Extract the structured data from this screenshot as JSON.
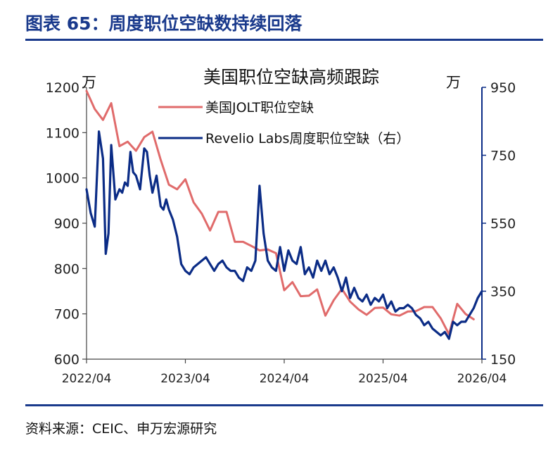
{
  "figure_title": "图表 65：周度职位空缺数持续回落",
  "source": "资料来源：CEIC、申万宏源研究",
  "chart_data": {
    "type": "line",
    "title": "美国职位空缺高频跟踪",
    "left_unit": "万",
    "right_unit": "万",
    "x_ticks": [
      "2022/04",
      "2023/04",
      "2024/04",
      "2025/04",
      "2026/04"
    ],
    "left_axis": {
      "ticks": [
        600,
        700,
        800,
        900,
        1000,
        1100,
        1200
      ],
      "ylim": [
        600,
        1200
      ]
    },
    "right_axis": {
      "ticks": [
        150,
        350,
        550,
        750,
        950
      ],
      "ylim": [
        150,
        950
      ]
    },
    "legend_position": "top-center",
    "series": [
      {
        "name": "美国JOLT职位空缺",
        "axis": "left",
        "color": "#e06b6b",
        "x": [
          "2022/04",
          "2022/05",
          "2022/06",
          "2022/07",
          "2022/08",
          "2022/09",
          "2022/10",
          "2022/11",
          "2022/12",
          "2023/01",
          "2023/02",
          "2023/03",
          "2023/04",
          "2023/05",
          "2023/06",
          "2023/07",
          "2023/08",
          "2023/09",
          "2023/10",
          "2023/11",
          "2023/12",
          "2024/01",
          "2024/02",
          "2024/03",
          "2024/04",
          "2024/05",
          "2024/06",
          "2024/07",
          "2024/08",
          "2024/09",
          "2024/10",
          "2024/11",
          "2024/12",
          "2025/01",
          "2025/02",
          "2025/03",
          "2025/04",
          "2025/05",
          "2025/06",
          "2025/07",
          "2025/08",
          "2025/09",
          "2025/10",
          "2025/11",
          "2025/12",
          "2026/01",
          "2026/02",
          "2026/03"
        ],
        "values": [
          1192,
          1152,
          1128,
          1165,
          1070,
          1080,
          1060,
          1090,
          1102,
          1040,
          985,
          975,
          997,
          946,
          921,
          884,
          925,
          925,
          859,
          859,
          850,
          840,
          842,
          834,
          752,
          770,
          739,
          740,
          754,
          696,
          730,
          755,
          727,
          710,
          698,
          713,
          714,
          699,
          696,
          705,
          706,
          715,
          715,
          690,
          655,
          722,
          700,
          688
        ]
      },
      {
        "name": "Revelio Labs周度职位空缺（右）",
        "axis": "right",
        "color": "#0b2c86",
        "x": [
          "2022/04",
          "2022/04",
          "2022/05",
          "2022/05",
          "2022/06",
          "2022/06",
          "2022/06",
          "2022/07",
          "2022/07",
          "2022/08",
          "2022/08",
          "2022/08",
          "2022/09",
          "2022/09",
          "2022/09",
          "2022/10",
          "2022/10",
          "2022/11",
          "2022/11",
          "2022/11",
          "2022/12",
          "2022/12",
          "2023/01",
          "2023/01",
          "2023/01",
          "2023/02",
          "2023/02",
          "2023/03",
          "2023/03",
          "2023/04",
          "2023/04",
          "2023/05",
          "2023/05",
          "2023/06",
          "2023/06",
          "2023/07",
          "2023/07",
          "2023/08",
          "2023/08",
          "2023/09",
          "2023/09",
          "2023/10",
          "2023/10",
          "2023/11",
          "2023/11",
          "2023/12",
          "2023/12",
          "2024/01",
          "2024/01",
          "2024/02",
          "2024/02",
          "2024/03",
          "2024/03",
          "2024/04",
          "2024/04",
          "2024/05",
          "2024/05",
          "2024/06",
          "2024/06",
          "2024/07",
          "2024/07",
          "2024/08",
          "2024/08",
          "2024/09",
          "2024/09",
          "2024/10",
          "2024/10",
          "2024/11",
          "2024/11",
          "2024/12",
          "2024/12",
          "2025/01",
          "2025/01",
          "2025/02",
          "2025/02",
          "2025/03",
          "2025/03",
          "2025/04",
          "2025/04",
          "2025/05",
          "2025/05",
          "2025/06",
          "2025/06",
          "2025/07",
          "2025/07",
          "2025/08",
          "2025/08",
          "2025/09",
          "2025/09",
          "2025/10",
          "2025/10",
          "2025/11",
          "2025/11",
          "2025/12",
          "2025/12",
          "2026/01",
          "2026/01",
          "2026/02",
          "2026/02",
          "2026/03",
          "2026/03",
          "2026/04"
        ],
        "values": [
          650,
          580,
          540,
          820,
          740,
          460,
          520,
          780,
          620,
          650,
          640,
          670,
          660,
          760,
          700,
          690,
          650,
          770,
          760,
          690,
          640,
          690,
          600,
          590,
          620,
          590,
          560,
          510,
          430,
          410,
          400,
          420,
          430,
          440,
          450,
          430,
          410,
          430,
          440,
          420,
          410,
          410,
          390,
          380,
          420,
          410,
          440,
          660,
          520,
          440,
          420,
          410,
          480,
          410,
          470,
          440,
          430,
          480,
          400,
          420,
          390,
          440,
          410,
          440,
          400,
          420,
          390,
          350,
          390,
          330,
          360,
          330,
          320,
          340,
          310,
          330,
          320,
          340,
          300,
          320,
          290,
          300,
          300,
          310,
          300,
          280,
          270,
          250,
          260,
          240,
          230,
          220,
          230,
          210,
          260,
          250,
          260,
          260,
          280,
          300,
          330,
          350
        ]
      }
    ]
  }
}
